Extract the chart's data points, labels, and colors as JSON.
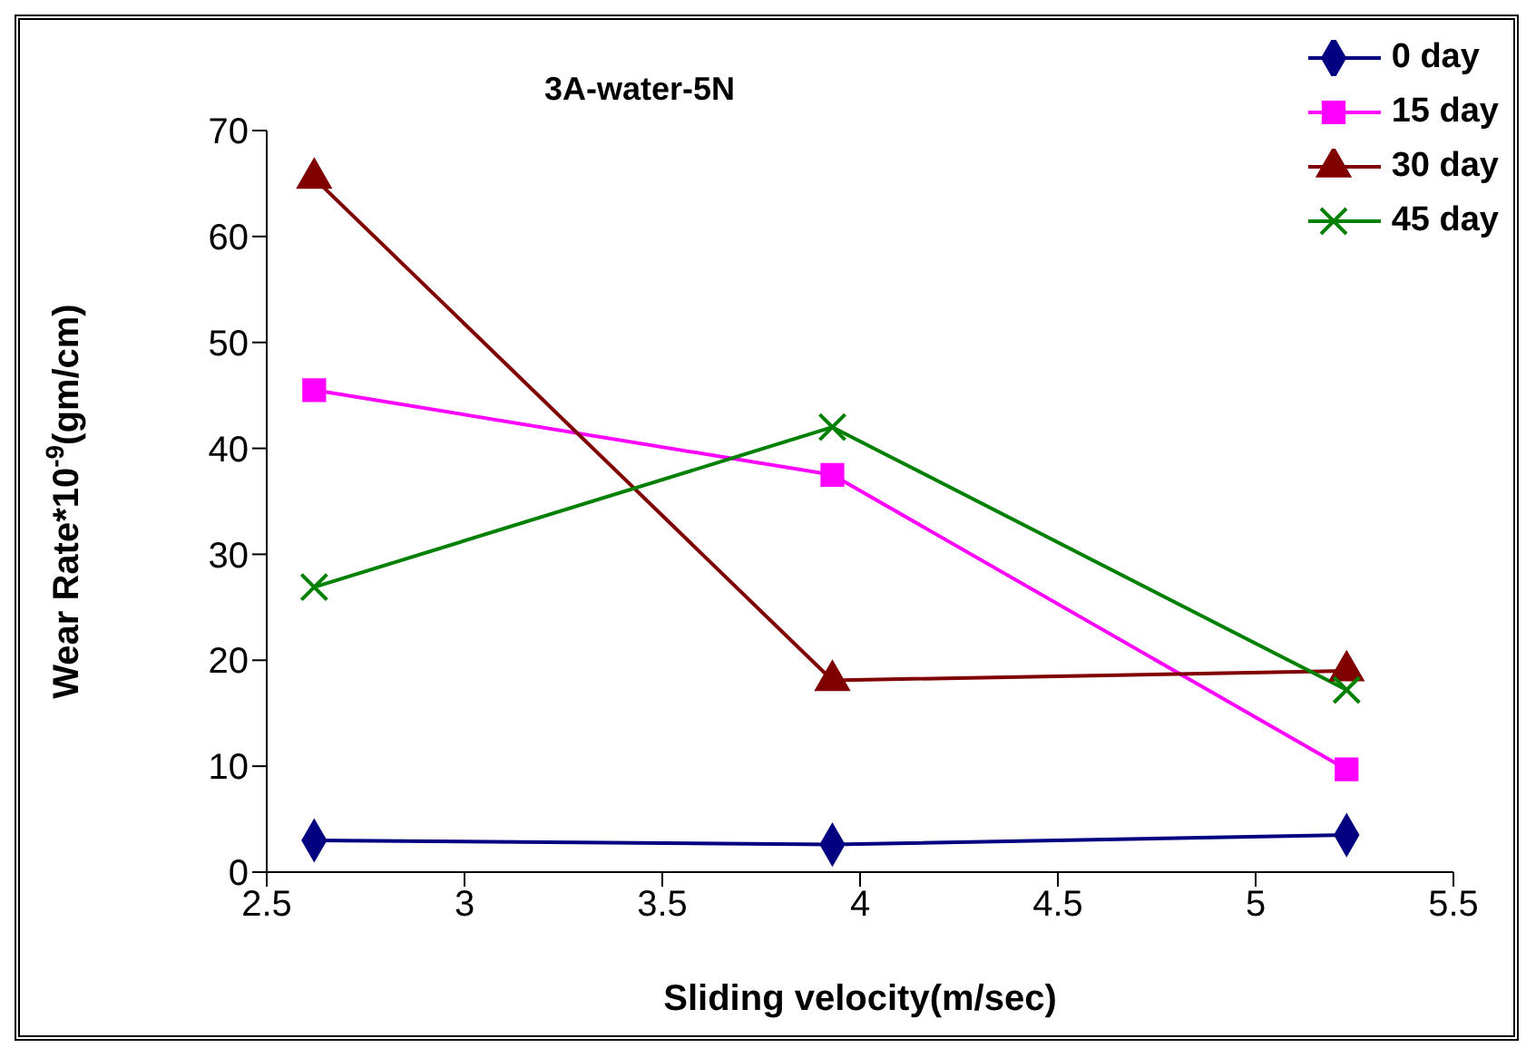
{
  "chart_data": {
    "type": "line",
    "title": "3A-water-5N",
    "xlabel": "Sliding velocity(m/sec)",
    "ylabel": "Wear Rate*10$^{-9}$(gm/cm)",
    "x": [
      2.62,
      3.93,
      5.23
    ],
    "series": [
      {
        "name": "0 day",
        "color": "#000080",
        "marker": "diamond",
        "values": [
          3.0,
          2.6,
          3.5
        ]
      },
      {
        "name": "15 day",
        "color": "#ff00ff",
        "marker": "square",
        "values": [
          45.5,
          37.5,
          9.7
        ]
      },
      {
        "name": "30 day",
        "color": "#800000",
        "marker": "triangle",
        "values": [
          65.5,
          18.1,
          19.0
        ]
      },
      {
        "name": "45 day",
        "color": "#008000",
        "marker": "cross",
        "values": [
          26.9,
          42.0,
          17.2
        ]
      }
    ],
    "xlim": [
      2.5,
      5.5
    ],
    "xticks": [
      2.5,
      3,
      3.5,
      4,
      4.5,
      5,
      5.5
    ],
    "ylim": [
      0,
      70
    ],
    "yticks": [
      0,
      10,
      20,
      30,
      40,
      50,
      60,
      70
    ],
    "grid": false,
    "legend": "top right",
    "line_style": "solid"
  }
}
